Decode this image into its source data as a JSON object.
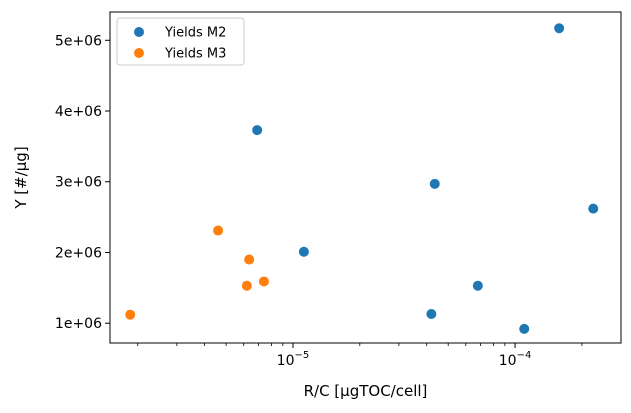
{
  "chart_data": {
    "type": "scatter",
    "xlabel": "R/C [μgTOC/cell]",
    "ylabel": "Y [#/μg]",
    "x_scale": "log",
    "xlim": [
      1.5e-06,
      0.0003
    ],
    "ylim": [
      720000,
      5400000
    ],
    "x_ticks": [
      {
        "value": 1e-05,
        "base": "10",
        "exp": "−5"
      },
      {
        "value": 0.0001,
        "base": "10",
        "exp": "−4"
      }
    ],
    "y_ticks": [
      {
        "value": 1000000,
        "label": "1e+06"
      },
      {
        "value": 2000000,
        "label": "2e+06"
      },
      {
        "value": 3000000,
        "label": "3e+06"
      },
      {
        "value": 4000000,
        "label": "4e+06"
      },
      {
        "value": 5000000,
        "label": "5e+06"
      }
    ],
    "grid": false,
    "legend_position": "top-left",
    "series": [
      {
        "name": "Yields M2",
        "color": "#1f77b4",
        "points": [
          {
            "x": 6.9e-06,
            "y": 3730000
          },
          {
            "x": 1.12e-05,
            "y": 2010000
          },
          {
            "x": 4.2e-05,
            "y": 1130000
          },
          {
            "x": 4.35e-05,
            "y": 2970000
          },
          {
            "x": 6.8e-05,
            "y": 1530000
          },
          {
            "x": 0.00011,
            "y": 920000
          },
          {
            "x": 0.000158,
            "y": 5170000
          },
          {
            "x": 0.000225,
            "y": 2620000
          }
        ]
      },
      {
        "name": "Yields M3",
        "color": "#ff7f0e",
        "points": [
          {
            "x": 1.85e-06,
            "y": 1120000
          },
          {
            "x": 4.6e-06,
            "y": 2310000
          },
          {
            "x": 6.2e-06,
            "y": 1530000
          },
          {
            "x": 6.35e-06,
            "y": 1900000
          },
          {
            "x": 7.4e-06,
            "y": 1590000
          }
        ]
      }
    ]
  }
}
